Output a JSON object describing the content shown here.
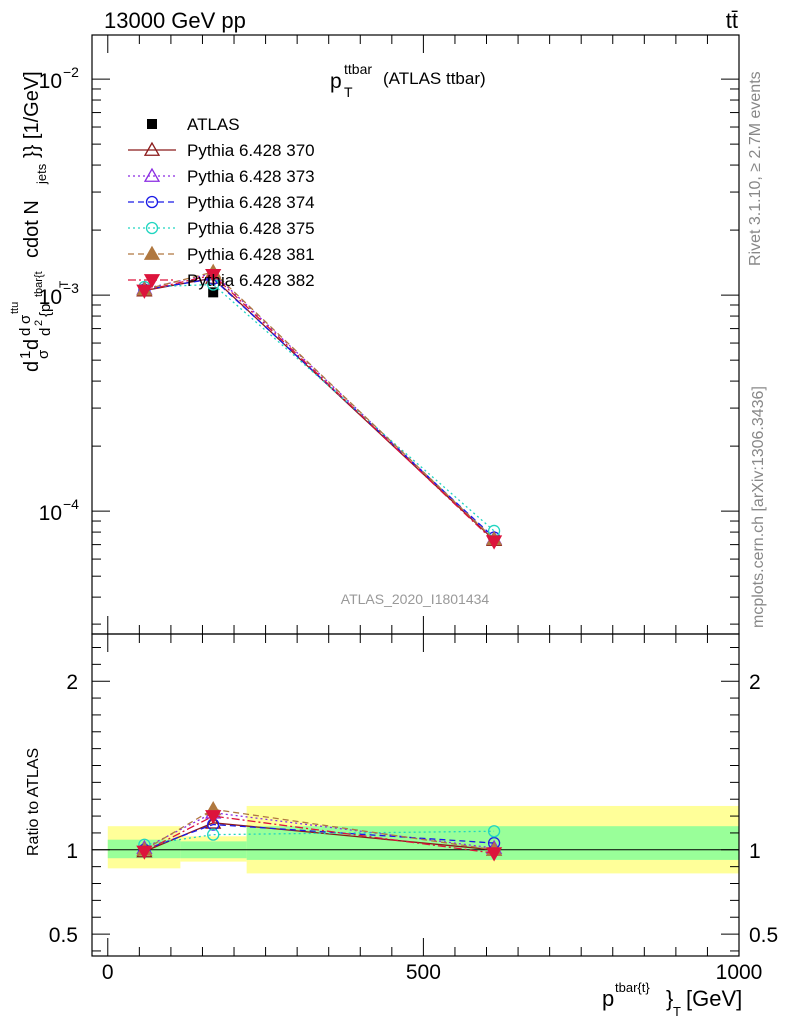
{
  "header": {
    "left": "13000 GeV pp",
    "right": "tt̄"
  },
  "plot_title": {
    "main": "p",
    "sub": "T",
    "sup": "ttbar",
    "rest": "(ATLAS ttbar)"
  },
  "side_texts": {
    "rivet": "Rivet 3.1.10, ≥ 2.7M events",
    "mcplots": "mcplots.cern.ch [arXiv:1306.3436]"
  },
  "analysis_label": "ATLAS_2020_I1801434",
  "y_label_main": {
    "part1": "d",
    "part2": "1",
    "part3": "σ",
    "part4": "d",
    "part5": "d",
    "part6": "σ",
    "part7": "ttu",
    "part8": "d",
    "part9": "2",
    "part10": "{p",
    "part11": "tbar{t",
    "part12": "T",
    "part13": "cdot N",
    "part14": "jets",
    "part15": "}} [1/GeV]"
  },
  "y_label_ratio": "Ratio to ATLAS",
  "x_label": {
    "main": "p",
    "sup": "tbar{t}",
    "close": "}",
    "sub": "T",
    "unit": "[GeV]"
  },
  "chart_data": {
    "type": "line",
    "main_panel": {
      "yscale": "log",
      "ylim": [
        2.7e-05,
        0.016
      ],
      "xlim": [
        -25,
        1000
      ],
      "y_tick_labels": [
        {
          "value": 0.01,
          "base": "10",
          "exp": "−2"
        },
        {
          "value": 0.001,
          "base": "10",
          "exp": "−3"
        },
        {
          "value": 0.0001,
          "base": "10",
          "exp": "−4"
        }
      ]
    },
    "ratio_panel": {
      "ylim": [
        0.37,
        2.28
      ],
      "y_ticks": [
        0.5,
        1,
        2
      ],
      "y_tick_labels": [
        "0.5",
        "1",
        "2"
      ]
    },
    "x_ticks": [
      0,
      500,
      1000
    ],
    "x_tick_labels": [
      "0",
      "500",
      "1000"
    ],
    "bin_edges": [
      0,
      115,
      220,
      1000
    ],
    "x": [
      58,
      167,
      612
    ],
    "data": {
      "name": "ATLAS",
      "values": [
        0.00106,
        0.00103,
        7.35e-05
      ],
      "band_inner": [
        [
          0.95,
          1.06
        ],
        [
          0.95,
          1.05
        ],
        [
          0.94,
          1.14
        ]
      ],
      "band_outer": [
        [
          0.89,
          1.14
        ],
        [
          0.93,
          1.08
        ],
        [
          0.86,
          1.26
        ]
      ]
    },
    "series": [
      {
        "name": "Pythia 6.428 370",
        "color": "#8b1a1a",
        "dash": "solid",
        "marker": "triangle-open",
        "values": [
          0.00105,
          0.0012,
          7.35e-05
        ],
        "ratio": [
          0.99,
          1.16,
          1.0
        ]
      },
      {
        "name": "Pythia 6.428 373",
        "color": "#8a2be2",
        "dash": "dot",
        "marker": "triangle-open",
        "values": [
          0.00107,
          0.00126,
          7.45e-05
        ],
        "ratio": [
          1.01,
          1.22,
          1.01
        ]
      },
      {
        "name": "Pythia 6.428 374",
        "color": "#1a1ae6",
        "dash": "dash",
        "marker": "circle-open",
        "values": [
          0.00106,
          0.00119,
          7.55e-05
        ],
        "ratio": [
          1.0,
          1.15,
          1.04
        ]
      },
      {
        "name": "Pythia 6.428 375",
        "color": "#20d5c0",
        "dash": "dot",
        "marker": "circle-open",
        "values": [
          0.00109,
          0.00112,
          8.1e-05
        ],
        "ratio": [
          1.03,
          1.09,
          1.11
        ]
      },
      {
        "name": "Pythia 6.428 381",
        "color": "#b07840",
        "dash": "dash",
        "marker": "triangle-filled",
        "values": [
          0.00106,
          0.00128,
          7.4e-05
        ],
        "ratio": [
          1.0,
          1.24,
          1.0
        ]
      },
      {
        "name": "Pythia 6.428 382",
        "color": "#dc143c",
        "dash": "dashdot",
        "marker": "triangle-down-filled",
        "values": [
          0.00105,
          0.00124,
          7.25e-05
        ],
        "ratio": [
          0.99,
          1.2,
          0.98
        ]
      }
    ]
  }
}
